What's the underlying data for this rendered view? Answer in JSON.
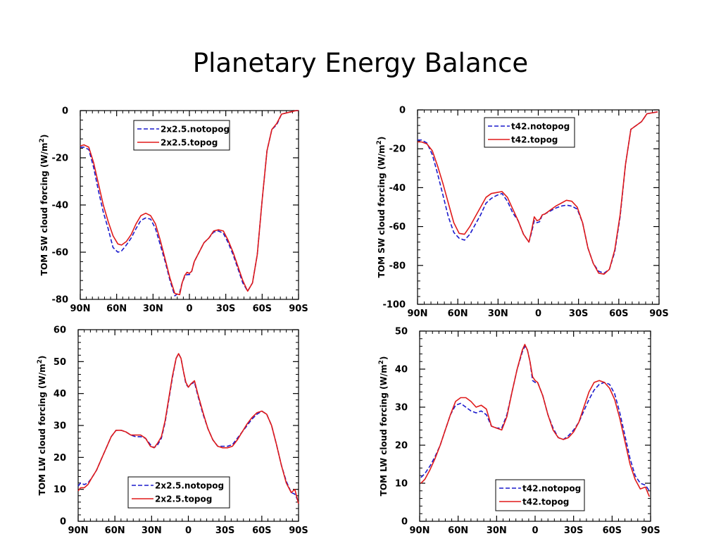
{
  "slide": {
    "title": "Planetary Energy Balance"
  },
  "colors": {
    "notopog": "#1a1acc",
    "topog": "#e01a1a",
    "axis": "#000000"
  },
  "chart_data": [
    {
      "type": "line",
      "ylabel_main": "TOM SW cloud forcing (W/m",
      "ylabel_sup": "2",
      "ylabel_close": ")",
      "xlim": [
        90,
        -90
      ],
      "ylim": [
        -80,
        0
      ],
      "xticks": [
        90,
        60,
        30,
        0,
        -30,
        -60,
        -90
      ],
      "xtick_labels": [
        "90N",
        "60N",
        "30N",
        "0",
        "30S",
        "60S",
        "90S"
      ],
      "yticks": [
        -80,
        -60,
        -40,
        -20,
        0
      ],
      "ytick_labels": [
        "-80",
        "-60",
        "-40",
        "-20",
        "0"
      ],
      "legend": {
        "position": "top-center"
      },
      "series": [
        {
          "name": "2x2.5.notopog",
          "style": "dashed",
          "color_key": "notopog",
          "x": [
            90,
            87,
            83,
            79,
            75,
            71,
            67,
            63,
            59,
            56,
            52,
            48,
            44,
            40,
            36,
            32,
            28,
            24,
            20,
            16,
            12,
            8,
            6,
            4,
            2,
            0,
            -2,
            -4,
            -8,
            -12,
            -16,
            -20,
            -24,
            -28,
            -32,
            -36,
            -40,
            -44,
            -48,
            -52,
            -56,
            -60,
            -64,
            -68,
            -72,
            -76,
            -80,
            -84,
            -88,
            -90
          ],
          "y": [
            -15.5,
            -15.5,
            -16.5,
            -24,
            -34,
            -43,
            -50,
            -58,
            -60,
            -59.5,
            -57,
            -54,
            -50,
            -46.5,
            -45.5,
            -46,
            -50,
            -57,
            -64,
            -72,
            -78.5,
            -77,
            -73,
            -70.5,
            -69.5,
            -69.5,
            -68,
            -64,
            -60,
            -56,
            -54,
            -51.5,
            -51,
            -52,
            -56,
            -61,
            -67,
            -73,
            -76.5,
            -73,
            -61,
            -38,
            -17,
            -8,
            -6,
            -1.5,
            -1,
            -0.5,
            0,
            0
          ]
        },
        {
          "name": "2x2.5.topog",
          "style": "solid",
          "color_key": "topog",
          "x": [
            90,
            87,
            83,
            79,
            75,
            71,
            67,
            63,
            59,
            56,
            52,
            48,
            44,
            40,
            36,
            32,
            28,
            24,
            20,
            16,
            12,
            8,
            6,
            4,
            2,
            0,
            -2,
            -4,
            -8,
            -12,
            -16,
            -20,
            -24,
            -28,
            -32,
            -36,
            -40,
            -44,
            -48,
            -52,
            -56,
            -60,
            -64,
            -68,
            -72,
            -76,
            -80,
            -84,
            -88,
            -90
          ],
          "y": [
            -15,
            -14.5,
            -15.5,
            -22,
            -31,
            -40,
            -47,
            -53,
            -56.5,
            -57,
            -55.5,
            -52.5,
            -48,
            -44.5,
            -43.5,
            -44.5,
            -48,
            -55,
            -63,
            -71,
            -77.5,
            -78,
            -73,
            -70,
            -68.5,
            -69,
            -68,
            -64,
            -60,
            -56,
            -54,
            -51,
            -50.5,
            -51,
            -55,
            -60,
            -66,
            -72,
            -76.5,
            -73,
            -61,
            -38,
            -17,
            -8,
            -5.5,
            -1.5,
            -1,
            -0.5,
            0,
            0
          ]
        }
      ]
    },
    {
      "type": "line",
      "ylabel_main": "TOM SW cloud forcing (W/m",
      "ylabel_sup": "2",
      "ylabel_close": ")",
      "xlim": [
        90,
        -90
      ],
      "ylim": [
        -100,
        0
      ],
      "xticks": [
        90,
        60,
        30,
        0,
        -30,
        -60,
        -90
      ],
      "xtick_labels": [
        "90N",
        "60N",
        "30N",
        "0",
        "30S",
        "60S",
        "90S"
      ],
      "yticks": [
        -100,
        -80,
        -60,
        -40,
        -20,
        0
      ],
      "ytick_labels": [
        "-100",
        "-80",
        "-60",
        "-40",
        "-20",
        "0"
      ],
      "legend": {
        "position": "top-center"
      },
      "series": [
        {
          "name": "t42.notopog",
          "style": "dashed",
          "color_key": "notopog",
          "x": [
            90,
            87,
            83,
            79,
            75,
            71,
            67,
            63,
            59,
            55,
            51,
            47,
            43,
            39,
            35,
            31,
            27,
            23,
            19,
            15,
            11,
            7,
            5,
            3,
            1,
            -1,
            -3,
            -5,
            -9,
            -13,
            -17,
            -21,
            -25,
            -29,
            -33,
            -37,
            -41,
            -45,
            -49,
            -53,
            -57,
            -61,
            -65,
            -69,
            -73,
            -77,
            -81,
            -85,
            -89
          ],
          "y": [
            -15.5,
            -15.5,
            -17,
            -23,
            -33,
            -44,
            -55,
            -63,
            -66,
            -67,
            -64,
            -59,
            -54,
            -48,
            -45.5,
            -44,
            -43,
            -47,
            -53,
            -57,
            -64,
            -68,
            -63,
            -57,
            -58,
            -57.5,
            -54,
            -53.5,
            -52,
            -50.5,
            -49.5,
            -49,
            -49.5,
            -51,
            -58,
            -71,
            -79,
            -83,
            -84,
            -82,
            -73,
            -55,
            -28,
            -10,
            -8,
            -6,
            -2,
            -1.5,
            -1
          ]
        },
        {
          "name": "t42.topog",
          "style": "solid",
          "color_key": "topog",
          "x": [
            90,
            87,
            83,
            79,
            75,
            71,
            67,
            63,
            59,
            55,
            51,
            47,
            43,
            39,
            35,
            31,
            27,
            23,
            19,
            15,
            11,
            7,
            5,
            3,
            1,
            -1,
            -3,
            -5,
            -9,
            -13,
            -17,
            -21,
            -25,
            -29,
            -33,
            -37,
            -41,
            -45,
            -49,
            -53,
            -57,
            -61,
            -65,
            -69,
            -73,
            -77,
            -81,
            -85,
            -89
          ],
          "y": [
            -16.5,
            -16.5,
            -17.5,
            -21,
            -29,
            -38,
            -48,
            -58,
            -63.5,
            -64,
            -60,
            -55,
            -50,
            -45,
            -43,
            -42.5,
            -42,
            -45,
            -51,
            -57,
            -64,
            -68,
            -62,
            -55,
            -57,
            -56.5,
            -54,
            -53.5,
            -51.5,
            -49.5,
            -48,
            -46.5,
            -47,
            -50,
            -58,
            -71,
            -79,
            -84,
            -84.5,
            -82,
            -72,
            -54,
            -28,
            -10,
            -8,
            -6,
            -2,
            -1.5,
            -1
          ]
        }
      ]
    },
    {
      "type": "line",
      "ylabel_main": "TOM LW cloud forcing (W/m",
      "ylabel_sup": "2",
      "ylabel_close": ")",
      "xlim": [
        90,
        -90
      ],
      "ylim": [
        0,
        60
      ],
      "xticks": [
        90,
        60,
        30,
        0,
        -30,
        -60,
        -90
      ],
      "xtick_labels": [
        "90N",
        "60N",
        "30N",
        "0",
        "30S",
        "60S",
        "90S"
      ],
      "yticks": [
        0,
        10,
        20,
        30,
        40,
        50,
        60
      ],
      "ytick_labels": [
        "0",
        "10",
        "20",
        "30",
        "40",
        "50",
        "60"
      ],
      "legend": {
        "position": "bottom-center"
      },
      "series": [
        {
          "name": "2x2.5.notopog",
          "style": "dashed",
          "color_key": "notopog",
          "x": [
            90,
            88,
            85,
            82,
            79,
            75,
            71,
            67,
            63,
            59,
            55,
            51,
            47,
            43,
            39,
            35,
            31,
            28,
            25,
            22,
            19,
            16,
            13,
            10,
            8,
            6,
            4,
            2,
            0,
            -2,
            -5,
            -8,
            -12,
            -16,
            -20,
            -24,
            -28,
            -32,
            -36,
            -40,
            -44,
            -48,
            -52,
            -56,
            -60,
            -64,
            -68,
            -72,
            -76,
            -80,
            -84,
            -87,
            -90
          ],
          "y": [
            11,
            12,
            11.5,
            12,
            13.5,
            16,
            19.5,
            23,
            26.5,
            28.5,
            28.5,
            28,
            27,
            26.5,
            26.5,
            26,
            24,
            23,
            24,
            26,
            31,
            38,
            45,
            51,
            52.5,
            51,
            47,
            43,
            42,
            43,
            43.5,
            39,
            33.5,
            29,
            25.5,
            23.5,
            23.5,
            23.5,
            24,
            26,
            28,
            30,
            32,
            33.5,
            34.5,
            33.5,
            30,
            24,
            17.5,
            12.5,
            9,
            8.5,
            6
          ]
        },
        {
          "name": "2x2.5.topog",
          "style": "solid",
          "color_key": "topog",
          "x": [
            90,
            88,
            85,
            82,
            79,
            75,
            71,
            67,
            63,
            59,
            55,
            51,
            47,
            43,
            39,
            35,
            31,
            28,
            25,
            22,
            19,
            16,
            13,
            10,
            8,
            6,
            4,
            2,
            0,
            -2,
            -5,
            -8,
            -12,
            -16,
            -20,
            -24,
            -28,
            -32,
            -36,
            -40,
            -44,
            -48,
            -52,
            -56,
            -60,
            -64,
            -68,
            -72,
            -76,
            -80,
            -84,
            -87,
            -90
          ],
          "y": [
            9.5,
            10.5,
            10.5,
            11.5,
            13.5,
            16,
            19.5,
            23,
            26.5,
            28.5,
            28.5,
            28,
            27,
            27,
            27,
            26,
            23.5,
            23,
            24.5,
            26.5,
            31.5,
            38.5,
            45.5,
            51,
            52.5,
            51,
            47,
            43.5,
            42,
            43,
            44,
            39.5,
            34,
            29,
            25.5,
            23.5,
            23,
            23,
            23.5,
            25.5,
            28,
            30.5,
            32.5,
            34,
            34.5,
            33.5,
            30,
            24,
            17.5,
            12,
            9,
            10,
            5.5
          ]
        }
      ]
    },
    {
      "type": "line",
      "ylabel_main": "TOM LW cloud forcing (W/m",
      "ylabel_sup": "2",
      "ylabel_close": ")",
      "xlim": [
        90,
        -90
      ],
      "ylim": [
        0,
        50
      ],
      "xticks": [
        90,
        60,
        30,
        0,
        -30,
        -60,
        -90
      ],
      "xtick_labels": [
        "90N",
        "60N",
        "30N",
        "0",
        "30S",
        "60S",
        "90S"
      ],
      "yticks": [
        0,
        10,
        20,
        30,
        40,
        50
      ],
      "ytick_labels": [
        "0",
        "10",
        "20",
        "30",
        "40",
        "50"
      ],
      "legend": {
        "position": "bottom-center"
      },
      "series": [
        {
          "name": "t42.notopog",
          "style": "dashed",
          "color_key": "notopog",
          "x": [
            89,
            86,
            82,
            78,
            74,
            70,
            66,
            62,
            58,
            54,
            50,
            46,
            42,
            38,
            34,
            30,
            26,
            22,
            18,
            14,
            10,
            8,
            6,
            4,
            2,
            0,
            -2,
            -6,
            -10,
            -14,
            -18,
            -22,
            -26,
            -30,
            -34,
            -38,
            -42,
            -46,
            -50,
            -54,
            -58,
            -62,
            -66,
            -70,
            -74,
            -78,
            -82,
            -86,
            -89
          ],
          "y": [
            11.5,
            12.5,
            14.5,
            17,
            20,
            24,
            28,
            30.5,
            31,
            30,
            29,
            28.5,
            29,
            28,
            25,
            24.5,
            24.5,
            28,
            34,
            40,
            44.5,
            46,
            45,
            42,
            37,
            36.5,
            36.5,
            33,
            28,
            24.5,
            22,
            21.5,
            22.5,
            24,
            26,
            29,
            32,
            34.5,
            36,
            36.5,
            36,
            33.5,
            28.5,
            22.5,
            16.5,
            12,
            10,
            9.5,
            8
          ]
        },
        {
          "name": "t42.topog",
          "style": "solid",
          "color_key": "topog",
          "x": [
            89,
            86,
            82,
            78,
            74,
            70,
            66,
            62,
            58,
            54,
            50,
            46,
            42,
            38,
            34,
            30,
            26,
            22,
            18,
            14,
            10,
            8,
            6,
            4,
            2,
            0,
            -2,
            -6,
            -10,
            -14,
            -18,
            -22,
            -26,
            -30,
            -34,
            -38,
            -42,
            -46,
            -50,
            -54,
            -58,
            -62,
            -66,
            -70,
            -74,
            -78,
            -82,
            -86,
            -89
          ],
          "y": [
            10,
            11,
            13.5,
            16.5,
            20,
            24,
            28,
            31.5,
            32.5,
            32.5,
            31.5,
            30,
            30.5,
            29.5,
            25,
            24.5,
            24,
            27.5,
            34,
            40,
            45,
            46.5,
            45,
            42,
            38,
            37,
            36.5,
            33,
            28,
            24,
            22,
            21.5,
            22,
            23.5,
            26,
            30,
            34,
            36.5,
            37,
            36.5,
            35,
            32,
            27,
            21,
            15,
            11,
            8.5,
            9,
            6.5
          ]
        }
      ]
    }
  ]
}
